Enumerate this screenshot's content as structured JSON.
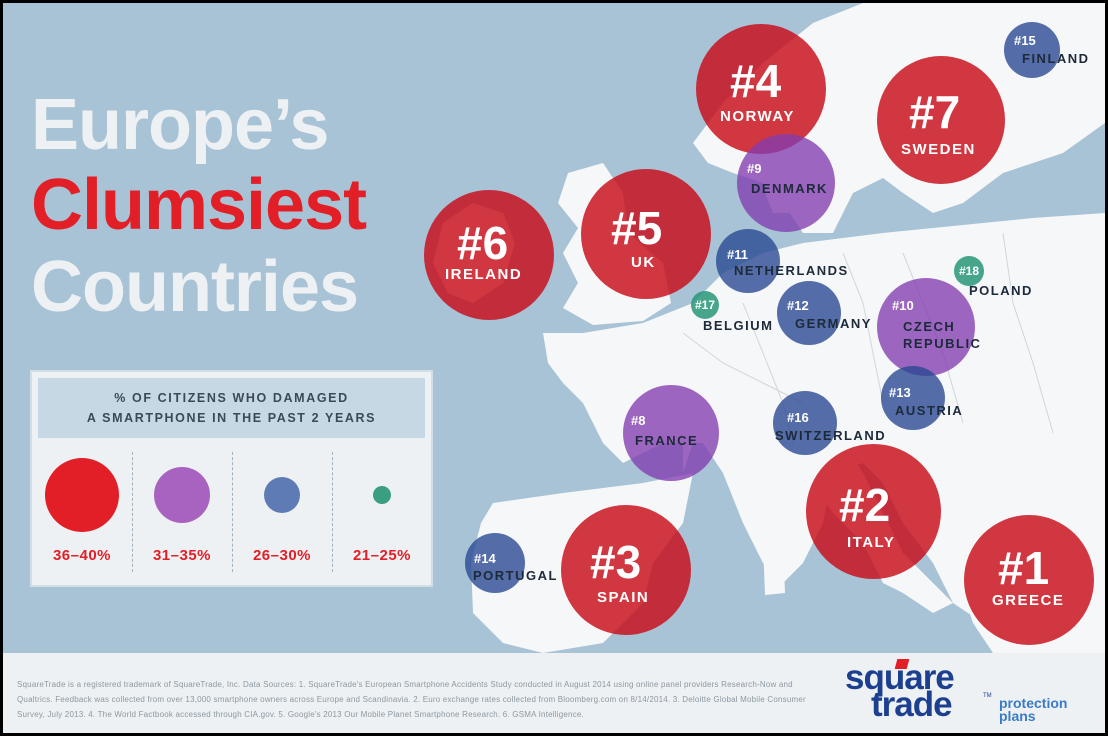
{
  "title": {
    "line1": "Europe’s",
    "line2": "Clumsiest",
    "line3": "Countries"
  },
  "legend": {
    "heading_line1": "% OF CITIZENS WHO DAMAGED",
    "heading_line2": "A SMARTPHONE IN THE PAST 2 YEARS",
    "items": [
      {
        "label": "36–40%",
        "color": "#e21f26"
      },
      {
        "label": "31–35%",
        "color": "#a862c0"
      },
      {
        "label": "26–30%",
        "color": "#5f7bb5"
      },
      {
        "label": "21–25%",
        "color": "#3a9e83"
      }
    ]
  },
  "countries": [
    {
      "rank": "#1",
      "name": "GREECE"
    },
    {
      "rank": "#2",
      "name": "ITALY"
    },
    {
      "rank": "#3",
      "name": "SPAIN"
    },
    {
      "rank": "#4",
      "name": "NORWAY"
    },
    {
      "rank": "#5",
      "name": "UK"
    },
    {
      "rank": "#6",
      "name": "IRELAND"
    },
    {
      "rank": "#7",
      "name": "SWEDEN"
    },
    {
      "rank": "#8",
      "name": "FRANCE"
    },
    {
      "rank": "#9",
      "name": "DENMARK"
    },
    {
      "rank": "#10",
      "name": "CZECH REPUBLIC"
    },
    {
      "rank": "#11",
      "name": "NETHERLANDS"
    },
    {
      "rank": "#12",
      "name": "GERMANY"
    },
    {
      "rank": "#13",
      "name": "AUSTRIA"
    },
    {
      "rank": "#14",
      "name": "PORTUGAL"
    },
    {
      "rank": "#15",
      "name": "FINLAND"
    },
    {
      "rank": "#16",
      "name": "SWITZERLAND"
    },
    {
      "rank": "#17",
      "name": "BELGIUM"
    },
    {
      "rank": "#18",
      "name": "POLAND"
    }
  ],
  "footer": {
    "text": "SquareTrade is a registered trademark of SquareTrade, Inc. Data Sources: 1. SquareTrade's European Smartphone Accidents Study conducted in August 2014 using online panel providers Research-Now and Qualtrics. Feedback was collected from over 13,000 smartphone owners across Europe and Scandinavia. 2. Euro exchange rates collected from Bloomberg.com on 8/14/2014. 3. Deloitte Global Mobile Consumer Survey, July 2013. 4. The World Factbook accessed through CIA.gov. 5. Google's 2013 Our Mobile Planet Smartphone Research. 6. GSMA Intelligence.",
    "logo_word1": "square",
    "logo_word2": "trade",
    "logo_tm": "TM",
    "logo_tag_line1": "protection",
    "logo_tag_line2": "plans"
  },
  "colors": {
    "sea": "#a9c3d6",
    "land": "#ffffff",
    "red": "#e21f26",
    "purple": "#a862c0",
    "blue": "#5f7bb5",
    "teal": "#3a9e83"
  }
}
